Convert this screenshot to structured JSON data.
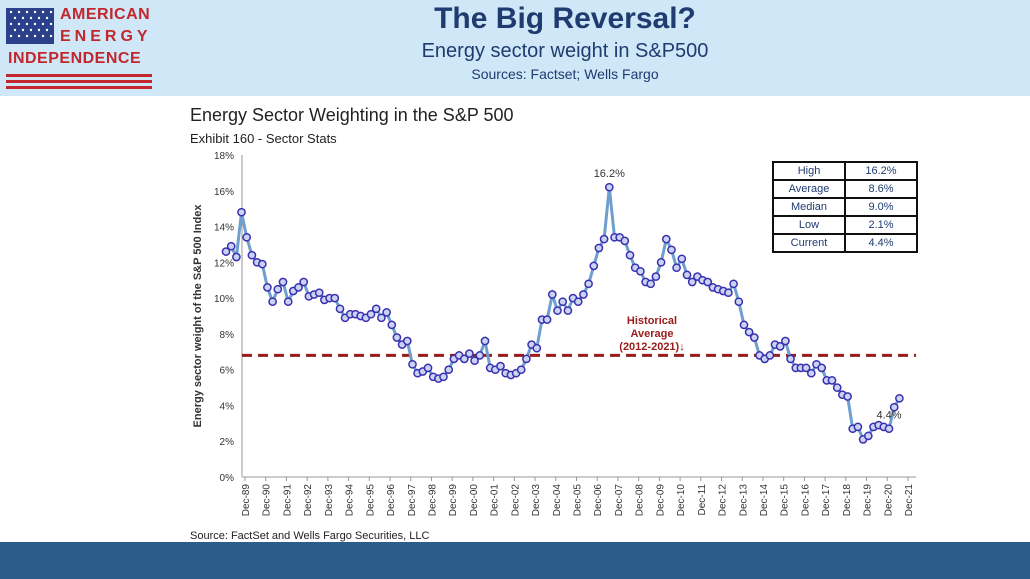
{
  "header": {
    "logo": {
      "line1": "AMERICAN",
      "line2": "ENERGY",
      "line3": "INDEPENDENCE"
    },
    "title": "The Big Reversal?",
    "subtitle": "Energy sector weight in S&P500",
    "sources": "Sources: Factset; Wells Fargo"
  },
  "colors": {
    "header_bg": "#cfe7f7",
    "title": "#1f3b70",
    "logo_red": "#c1272d",
    "line": "#6f9fcf",
    "marker": "#3a2fb0",
    "avg_line": "#9b1c1c",
    "bottom_bar": "#2c5c8a"
  },
  "chart_data": {
    "type": "line",
    "title": "Energy Sector Weighting in the S&P 500",
    "subtitle": "Exhibit 160 - Sector Stats",
    "ylabel": "Energy sector weight of the S&P 500 Index",
    "xlabel": "",
    "ylim": [
      0,
      18
    ],
    "yticks": [
      "0%",
      "2%",
      "4%",
      "6%",
      "8%",
      "10%",
      "12%",
      "14%",
      "16%",
      "18%"
    ],
    "xticks": [
      "Dec-89",
      "Dec-90",
      "Dec-91",
      "Dec-92",
      "Dec-93",
      "Dec-94",
      "Dec-95",
      "Dec-96",
      "Dec-97",
      "Dec-98",
      "Dec-99",
      "Dec-00",
      "Dec-01",
      "Dec-02",
      "Dec-03",
      "Dec-04",
      "Dec-05",
      "Dec-06",
      "Dec-07",
      "Dec-08",
      "Dec-09",
      "Dec-10",
      "Dec-11",
      "Dec-12",
      "Dec-13",
      "Dec-14",
      "Dec-15",
      "Dec-16",
      "Dec-17",
      "Dec-18",
      "Dec-19",
      "Dec-20",
      "Dec-21"
    ],
    "x_start_year": 1989.0,
    "x_step_years": 0.25,
    "values": [
      12.6,
      12.9,
      12.3,
      14.8,
      13.4,
      12.4,
      12.0,
      11.9,
      10.6,
      9.8,
      10.5,
      10.9,
      9.8,
      10.4,
      10.6,
      10.9,
      10.1,
      10.2,
      10.3,
      9.9,
      10.0,
      10.0,
      9.4,
      8.9,
      9.1,
      9.1,
      9.0,
      8.9,
      9.1,
      9.4,
      8.9,
      9.2,
      8.5,
      7.8,
      7.4,
      7.6,
      6.3,
      5.8,
      5.9,
      6.1,
      5.6,
      5.5,
      5.6,
      6.0,
      6.6,
      6.8,
      6.6,
      6.9,
      6.5,
      6.8,
      7.6,
      6.1,
      6.0,
      6.2,
      5.8,
      5.7,
      5.8,
      6.0,
      6.6,
      7.4,
      7.2,
      8.8,
      8.8,
      10.2,
      9.3,
      9.8,
      9.3,
      10.0,
      9.8,
      10.2,
      10.8,
      11.8,
      12.8,
      13.3,
      16.2,
      13.4,
      13.4,
      13.2,
      12.4,
      11.7,
      11.5,
      10.9,
      10.8,
      11.2,
      12.0,
      13.3,
      12.7,
      11.7,
      12.2,
      11.3,
      10.9,
      11.2,
      11.0,
      10.9,
      10.6,
      10.5,
      10.4,
      10.3,
      10.8,
      9.8,
      8.5,
      8.1,
      7.8,
      6.8,
      6.6,
      6.8,
      7.4,
      7.3,
      7.6,
      6.6,
      6.1,
      6.1,
      6.1,
      5.8,
      6.3,
      6.1,
      5.4,
      5.4,
      5.0,
      4.6,
      4.5,
      2.7,
      2.8,
      2.1,
      2.3,
      2.8,
      2.9,
      2.8,
      2.7,
      3.9,
      4.4
    ],
    "avg_line": {
      "value": 6.8,
      "label_lines": [
        "Historical",
        "Average",
        "(2012-2021)↓"
      ]
    },
    "annotations": [
      {
        "text": "16.2%",
        "index": 74
      },
      {
        "text": "4.4%",
        "index": 128
      }
    ],
    "source_note": "Source: FactSet and Wells Fargo Securities, LLC"
  },
  "stats_table": {
    "rows": [
      {
        "label": "High",
        "value": "16.2%"
      },
      {
        "label": "Average",
        "value": "8.6%"
      },
      {
        "label": "Median",
        "value": "9.0%"
      },
      {
        "label": "Low",
        "value": "2.1%"
      },
      {
        "label": "Current",
        "value": "4.4%"
      }
    ]
  }
}
